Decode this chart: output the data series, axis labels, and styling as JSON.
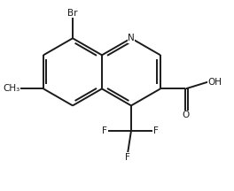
{
  "bg_color": "#ffffff",
  "bond_color": "#1a1a1a",
  "bond_width": 1.4,
  "font_size": 7.5,
  "figsize": [
    2.64,
    2.16
  ],
  "dpi": 100,
  "xlim": [
    -0.5,
    5.5
  ],
  "ylim": [
    -3.2,
    2.4
  ]
}
